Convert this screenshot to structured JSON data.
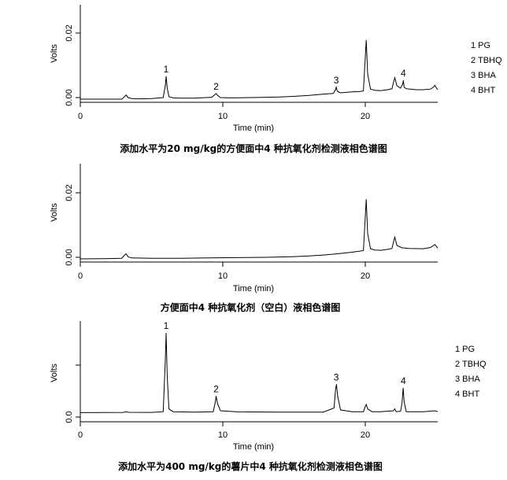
{
  "chart_data": [
    {
      "type": "line",
      "title": "添加水平为20 mg/kg的方便面中4 种抗氧化剂检测液相色谱图",
      "xlabel": "Time (min)",
      "ylabel": "Volts",
      "xlim": [
        0,
        25
      ],
      "ylim": [
        -0.001,
        0.03
      ],
      "x_ticks": [
        "0",
        "10",
        "20"
      ],
      "y_ticks": [
        "0.00",
        "0.02"
      ],
      "peaks": [
        {
          "label": "1",
          "x": 6.0,
          "y": 0.0073
        },
        {
          "label": "2",
          "x": 9.5,
          "y": 0.0018
        },
        {
          "label": "3",
          "x": 17.9,
          "y": 0.0038
        },
        {
          "label": "4",
          "x": 22.6,
          "y": 0.006
        }
      ],
      "series": [
        {
          "x": [
            0,
            2.9,
            3.05,
            3.2,
            3.35,
            3.6,
            4.0,
            5.0,
            5.8,
            5.95,
            6.0,
            6.08,
            6.2,
            6.5,
            7.0,
            8.0,
            9.2,
            9.4,
            9.5,
            9.6,
            9.8,
            10.5,
            12,
            14,
            15,
            16,
            17,
            17.7,
            17.85,
            17.9,
            17.98,
            18.2,
            19.0,
            19.5,
            19.8,
            19.92,
            20.0,
            20.1,
            20.3,
            20.6,
            21.0,
            21.5,
            21.8,
            21.9,
            22.0,
            22.15,
            22.4,
            22.55,
            22.6,
            22.65,
            22.8,
            23.5,
            24.0,
            24.5,
            24.7,
            24.8,
            24.9,
            25.0
          ],
          "y": [
            0,
            0,
            0.0006,
            0.0013,
            0.0005,
            0.0002,
            0.0001,
            0.0002,
            0.0005,
            0.0045,
            0.0073,
            0.0035,
            0.0008,
            0.0004,
            0.0003,
            0.0003,
            0.0006,
            0.0014,
            0.0018,
            0.0012,
            0.0005,
            0.0004,
            0.0005,
            0.0007,
            0.0009,
            0.0012,
            0.0016,
            0.0018,
            0.003,
            0.0038,
            0.0025,
            0.002,
            0.0023,
            0.0024,
            0.0026,
            0.012,
            0.0188,
            0.008,
            0.0032,
            0.0028,
            0.0027,
            0.003,
            0.0033,
            0.0052,
            0.0068,
            0.0042,
            0.0035,
            0.0048,
            0.006,
            0.0038,
            0.0033,
            0.003,
            0.003,
            0.0032,
            0.0038,
            0.0044,
            0.0036,
            0.003
          ]
        }
      ]
    },
    {
      "type": "line",
      "title": "方便面中4 种抗氧化剂（空白）液相色谱图",
      "xlabel": "Time (min)",
      "ylabel": "Volts",
      "xlim": [
        0,
        25
      ],
      "ylim": [
        -0.001,
        0.03
      ],
      "x_ticks": [
        "0",
        "10",
        "20"
      ],
      "y_ticks": [
        "0.00",
        "0.02"
      ],
      "series": [
        {
          "x": [
            0,
            2.0,
            2.9,
            3.1,
            3.2,
            3.35,
            3.6,
            5.0,
            7.0,
            9.0,
            11,
            13,
            15,
            16,
            17,
            18,
            19.0,
            19.5,
            19.8,
            19.92,
            20.0,
            20.1,
            20.3,
            20.6,
            21.0,
            21.5,
            21.8,
            21.9,
            22.0,
            22.15,
            22.5,
            23.0,
            24.0,
            24.5,
            24.7,
            24.8,
            25.0
          ],
          "y": [
            0,
            0.0001,
            0.0002,
            0.0012,
            0.0016,
            0.0006,
            0.0003,
            0.0002,
            0.0002,
            0.0003,
            0.0004,
            0.0005,
            0.0007,
            0.0009,
            0.0012,
            0.0016,
            0.0021,
            0.0024,
            0.0026,
            0.012,
            0.0188,
            0.008,
            0.0032,
            0.0028,
            0.0027,
            0.003,
            0.0033,
            0.0052,
            0.0068,
            0.0042,
            0.0035,
            0.0033,
            0.0032,
            0.0036,
            0.0042,
            0.0045,
            0.0034
          ]
        }
      ]
    },
    {
      "type": "line",
      "title": "添加水平为400 mg/kg的薯片中4 种抗氧化剂检测液相色谱图",
      "xlabel": "Time (min)",
      "ylabel": "Volts",
      "xlim": [
        0,
        25
      ],
      "ylim": [
        -0.01,
        0.1
      ],
      "x_ticks": [
        "0",
        "10",
        "20"
      ],
      "y_ticks": [
        "0.0"
      ],
      "peaks": [
        {
          "label": "1",
          "x": 6.0,
          "y": 0.087
        },
        {
          "label": "2",
          "x": 9.5,
          "y": 0.018
        },
        {
          "label": "3",
          "x": 17.9,
          "y": 0.031
        },
        {
          "label": "4",
          "x": 22.6,
          "y": 0.027
        }
      ],
      "series": [
        {
          "x": [
            0,
            3.0,
            3.2,
            3.4,
            5.0,
            5.8,
            5.95,
            6.0,
            6.08,
            6.2,
            6.5,
            8.0,
            9.3,
            9.45,
            9.5,
            9.6,
            9.8,
            11,
            14,
            17.0,
            17.75,
            17.85,
            17.92,
            18.0,
            18.2,
            19.0,
            19.8,
            19.92,
            20.0,
            20.1,
            20.4,
            21.0,
            21.9,
            22.0,
            22.1,
            22.4,
            22.5,
            22.58,
            22.65,
            22.8,
            24.0,
            24.8,
            25.0
          ],
          "y": [
            0,
            0.0002,
            0.0008,
            0.0003,
            0.0002,
            0.001,
            0.06,
            0.087,
            0.04,
            0.004,
            0.001,
            0.0005,
            0.001,
            0.012,
            0.018,
            0.01,
            0.002,
            0.0008,
            0.0005,
            0.0006,
            0.005,
            0.025,
            0.031,
            0.018,
            0.003,
            0.001,
            0.001,
            0.006,
            0.009,
            0.004,
            0.001,
            0.001,
            0.002,
            0.004,
            0.001,
            0.0015,
            0.01,
            0.027,
            0.012,
            0.001,
            0.001,
            0.002,
            0.001
          ]
        }
      ]
    }
  ],
  "legend": [
    "1 PG",
    "2 TBHQ",
    "3 BHA",
    "4 BHT"
  ]
}
